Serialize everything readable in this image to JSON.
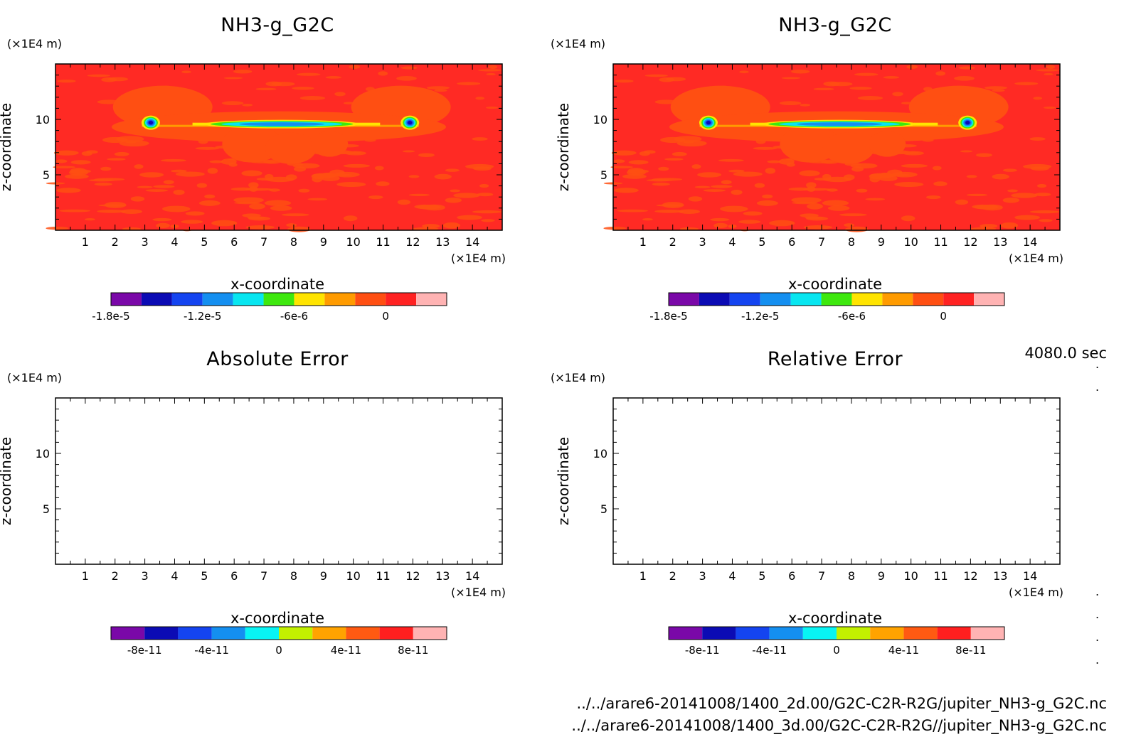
{
  "panels": [
    {
      "title": "NH3-g_G2C",
      "y_unit": "(×1E4 m)",
      "x_unit": "(×1E4 m)",
      "xlabel": "x-coordinate",
      "ylabel": "z-coordinate",
      "colorbar_ticks": [
        "-1.8e-5",
        "-1.2e-5",
        "-6e-6",
        "0"
      ]
    },
    {
      "title": "NH3-g_G2C",
      "y_unit": "(×1E4 m)",
      "x_unit": "(×1E4 m)",
      "xlabel": "x-coordinate",
      "ylabel": "z-coordinate",
      "colorbar_ticks": [
        "-1.8e-5",
        "-1.2e-5",
        "-6e-6",
        "0"
      ]
    },
    {
      "title": "Absolute Error",
      "y_unit": "(×1E4 m)",
      "x_unit": "(×1E4 m)",
      "xlabel": "x-coordinate",
      "ylabel": "z-coordinate",
      "colorbar_ticks": [
        "-8e-11",
        "-4e-11",
        "0",
        "4e-11",
        "8e-11"
      ]
    },
    {
      "title": "Relative Error",
      "y_unit": "(×1E4 m)",
      "x_unit": "(×1E4 m)",
      "xlabel": "x-coordinate",
      "ylabel": "z-coordinate",
      "colorbar_ticks": [
        "-8e-11",
        "-4e-11",
        "0",
        "4e-11",
        "8e-11"
      ]
    }
  ],
  "timestamp": "4080.0 sec",
  "file_paths": [
    "../../arare6-20141008/1400_2d.00/G2C-C2R-R2G/jupiter_NH3-g_G2C.nc",
    "../../arare6-20141008/1400_3d.00/G2C-C2R-R2G//jupiter_NH3-g_G2C.nc"
  ],
  "colors": {
    "field_background": "#ff2a24",
    "field_plume": "#ff4f12",
    "colorbar_top": [
      "#7a08a8",
      "#0b0bb4",
      "#1444f0",
      "#148ff0",
      "#08e6f0",
      "#3ee80e",
      "#ffe400",
      "#ff9b00",
      "#ff4f12",
      "#ff2222",
      "#ffb3b3"
    ],
    "colorbar_bottom": [
      "#7a08a8",
      "#0b0bb4",
      "#1444f0",
      "#148ff0",
      "#08f4f4",
      "#c2f000",
      "#ffa300",
      "#ff5a12",
      "#ff1f1f",
      "#ffb3b3"
    ]
  },
  "chart_data": [
    {
      "type": "heatmap",
      "title": "NH3-g_G2C",
      "xlabel": "x-coordinate",
      "ylabel": "z-coordinate",
      "x_unit": "×1E4 m",
      "y_unit": "×1E4 m",
      "xlim": [
        0,
        15
      ],
      "ylim": [
        0,
        15
      ],
      "x_ticks": [
        1,
        2,
        3,
        4,
        5,
        6,
        7,
        8,
        9,
        10,
        11,
        12,
        13,
        14
      ],
      "y_ticks": [
        5,
        10
      ],
      "colorbar_levels": [
        "-1.8e-5",
        "-1.2e-5",
        "-6e-6",
        "0"
      ],
      "features": {
        "plume_center_z": 9.7,
        "cores": [
          {
            "x": 3.2,
            "z": 9.7,
            "min": -1.8e-05
          },
          {
            "x": 7.5,
            "z": 9.7,
            "min": -1.2e-05
          },
          {
            "x": 11.9,
            "z": 9.7,
            "min": -1.8e-05
          }
        ],
        "band_x": [
          2.9,
          12.2
        ],
        "background_value": 0
      }
    },
    {
      "type": "heatmap",
      "title": "NH3-g_G2C",
      "xlabel": "x-coordinate",
      "ylabel": "z-coordinate",
      "x_unit": "×1E4 m",
      "y_unit": "×1E4 m",
      "xlim": [
        0,
        15
      ],
      "ylim": [
        0,
        15
      ],
      "x_ticks": [
        1,
        2,
        3,
        4,
        5,
        6,
        7,
        8,
        9,
        10,
        11,
        12,
        13,
        14
      ],
      "y_ticks": [
        5,
        10
      ],
      "colorbar_levels": [
        "-1.8e-5",
        "-1.2e-5",
        "-6e-6",
        "0"
      ],
      "features": {
        "plume_center_z": 9.7,
        "cores": [
          {
            "x": 3.2,
            "z": 9.7,
            "min": -1.8e-05
          },
          {
            "x": 7.5,
            "z": 9.7,
            "min": -1.2e-05
          },
          {
            "x": 11.9,
            "z": 9.7,
            "min": -1.8e-05
          }
        ],
        "band_x": [
          2.9,
          12.2
        ],
        "background_value": 0
      }
    },
    {
      "type": "heatmap",
      "title": "Absolute Error",
      "xlabel": "x-coordinate",
      "ylabel": "z-coordinate",
      "xlim": [
        0,
        15
      ],
      "ylim": [
        0,
        15
      ],
      "x_ticks": [
        1,
        2,
        3,
        4,
        5,
        6,
        7,
        8,
        9,
        10,
        11,
        12,
        13,
        14
      ],
      "y_ticks": [
        5,
        10
      ],
      "colorbar_levels": [
        "-8e-11",
        "-4e-11",
        "0",
        "4e-11",
        "8e-11"
      ],
      "values": "empty"
    },
    {
      "type": "heatmap",
      "title": "Relative Error",
      "xlabel": "x-coordinate",
      "ylabel": "z-coordinate",
      "xlim": [
        0,
        15
      ],
      "ylim": [
        0,
        15
      ],
      "x_ticks": [
        1,
        2,
        3,
        4,
        5,
        6,
        7,
        8,
        9,
        10,
        11,
        12,
        13,
        14
      ],
      "y_ticks": [
        5,
        10
      ],
      "colorbar_levels": [
        "-8e-11",
        "-4e-11",
        "0",
        "4e-11",
        "8e-11"
      ],
      "values": "empty"
    }
  ]
}
